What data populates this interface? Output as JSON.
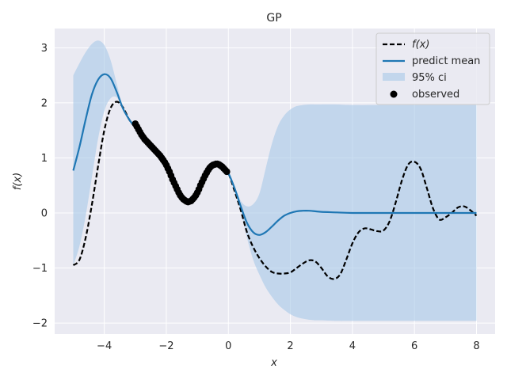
{
  "chart_data": {
    "type": "line",
    "title": "GP",
    "xlabel": "x",
    "ylabel": "f(x)",
    "xlim": [
      -5.6,
      8.6
    ],
    "ylim": [
      -2.2,
      3.35
    ],
    "x_ticks": [
      -4,
      -2,
      0,
      2,
      4,
      6,
      8
    ],
    "y_ticks": [
      -2,
      -1,
      0,
      1,
      2,
      3
    ],
    "x_tick_labels": [
      "−4",
      "−2",
      "0",
      "2",
      "4",
      "6",
      "8"
    ],
    "y_tick_labels": [
      "−2",
      "−1",
      "0",
      "1",
      "2",
      "3"
    ],
    "grid": true,
    "legend_position": "top-right",
    "legend": [
      "f(x)",
      "predict mean",
      "95% ci",
      "observed"
    ],
    "colors": {
      "background": "#eaeaf2",
      "grid": "#ffffff",
      "true_function": "#000000",
      "mean": "#1f77b4",
      "ci_fill": "#a6c8e8",
      "observed": "#000000"
    },
    "series": [
      {
        "name": "f(x)",
        "style": "dashed",
        "x": [
          -5.0,
          -4.8,
          -4.6,
          -4.4,
          -4.2,
          -4.0,
          -3.8,
          -3.6,
          -3.4,
          -3.2,
          -3.0,
          -2.8,
          -2.6,
          -2.4,
          -2.2,
          -2.0,
          -1.8,
          -1.6,
          -1.4,
          -1.2,
          -1.0,
          -0.8,
          -0.6,
          -0.4,
          -0.2,
          0.0,
          0.2,
          0.4,
          0.6,
          0.8,
          1.0,
          1.2,
          1.4,
          1.6,
          1.8,
          2.0,
          2.2,
          2.4,
          2.6,
          2.8,
          3.0,
          3.2,
          3.4,
          3.6,
          3.8,
          4.0,
          4.2,
          4.4,
          4.6,
          4.8,
          5.0,
          5.2,
          5.4,
          5.6,
          5.8,
          6.0,
          6.2,
          6.4,
          6.6,
          6.8,
          7.0,
          7.2,
          7.4,
          7.6,
          7.8,
          8.0
        ],
        "y": [
          -0.95,
          -0.85,
          -0.45,
          0.15,
          0.85,
          1.5,
          1.9,
          2.02,
          1.92,
          1.7,
          1.55,
          1.4,
          1.25,
          1.15,
          1.05,
          0.9,
          0.65,
          0.4,
          0.25,
          0.2,
          0.3,
          0.55,
          0.78,
          0.88,
          0.85,
          0.72,
          0.4,
          0.05,
          -0.35,
          -0.62,
          -0.82,
          -0.97,
          -1.07,
          -1.1,
          -1.1,
          -1.08,
          -1.0,
          -0.92,
          -0.86,
          -0.88,
          -1.0,
          -1.15,
          -1.2,
          -1.12,
          -0.85,
          -0.55,
          -0.35,
          -0.28,
          -0.3,
          -0.33,
          -0.32,
          -0.15,
          0.2,
          0.6,
          0.88,
          0.93,
          0.8,
          0.45,
          0.08,
          -0.12,
          -0.08,
          0.0,
          0.1,
          0.12,
          0.05,
          -0.05
        ]
      },
      {
        "name": "predict mean",
        "style": "solid",
        "x": [
          -5.0,
          -4.8,
          -4.6,
          -4.4,
          -4.2,
          -4.0,
          -3.8,
          -3.6,
          -3.4,
          -3.2,
          -3.0,
          -2.8,
          -2.6,
          -2.4,
          -2.2,
          -2.0,
          -1.8,
          -1.6,
          -1.4,
          -1.2,
          -1.0,
          -0.8,
          -0.6,
          -0.4,
          -0.2,
          0.0,
          0.2,
          0.4,
          0.6,
          0.8,
          1.0,
          1.2,
          1.4,
          1.6,
          1.8,
          2.0,
          2.2,
          2.4,
          2.6,
          2.8,
          3.0,
          3.5,
          4.0,
          5.0,
          6.0,
          7.0,
          8.0
        ],
        "y": [
          0.77,
          1.2,
          1.7,
          2.15,
          2.42,
          2.52,
          2.45,
          2.2,
          1.9,
          1.7,
          1.55,
          1.4,
          1.25,
          1.15,
          1.05,
          0.9,
          0.65,
          0.4,
          0.25,
          0.2,
          0.3,
          0.55,
          0.78,
          0.88,
          0.85,
          0.72,
          0.45,
          0.12,
          -0.18,
          -0.35,
          -0.4,
          -0.35,
          -0.25,
          -0.14,
          -0.05,
          0.0,
          0.03,
          0.04,
          0.04,
          0.03,
          0.02,
          0.01,
          0.0,
          0.0,
          0.0,
          0.0,
          0.0
        ]
      },
      {
        "name": "95% ci",
        "style": "band",
        "x": [
          -5.0,
          -4.8,
          -4.6,
          -4.4,
          -4.2,
          -4.0,
          -3.8,
          -3.6,
          -3.4,
          -3.2,
          -3.0,
          -2.0,
          -1.0,
          -0.2,
          0.0,
          0.2,
          0.4,
          0.6,
          0.8,
          1.0,
          1.2,
          1.4,
          1.6,
          1.8,
          2.0,
          2.2,
          2.4,
          2.6,
          2.8,
          3.0,
          3.5,
          4.0,
          5.0,
          6.0,
          7.0,
          8.0
        ],
        "lower": [
          -0.95,
          -0.6,
          -0.05,
          0.65,
          1.35,
          1.85,
          2.08,
          2.1,
          1.9,
          1.7,
          1.55,
          0.9,
          0.3,
          0.85,
          0.72,
          0.42,
          0.05,
          -0.45,
          -0.85,
          -1.12,
          -1.35,
          -1.52,
          -1.66,
          -1.76,
          -1.84,
          -1.89,
          -1.92,
          -1.94,
          -1.95,
          -1.95,
          -1.96,
          -1.96,
          -1.96,
          -1.96,
          -1.96,
          -1.96
        ],
        "upper": [
          2.5,
          2.72,
          2.92,
          3.07,
          3.13,
          3.05,
          2.78,
          2.35,
          1.92,
          1.7,
          1.55,
          0.9,
          0.3,
          0.85,
          0.72,
          0.48,
          0.22,
          0.12,
          0.16,
          0.35,
          0.8,
          1.25,
          1.58,
          1.77,
          1.88,
          1.94,
          1.96,
          1.97,
          1.97,
          1.97,
          1.97,
          1.96,
          1.96,
          1.96,
          1.96,
          1.96
        ]
      },
      {
        "name": "observed",
        "style": "points",
        "x_range": [
          -3.0,
          -0.05
        ],
        "x": [
          -3.0,
          -2.95,
          -2.9,
          -2.85,
          -2.8,
          -2.75,
          -2.7,
          -2.65,
          -2.6,
          -2.55,
          -2.5,
          -2.45,
          -2.4,
          -2.35,
          -2.3,
          -2.25,
          -2.2,
          -2.15,
          -2.1,
          -2.05,
          -2.0,
          -1.95,
          -1.9,
          -1.85,
          -1.8,
          -1.75,
          -1.7,
          -1.65,
          -1.6,
          -1.55,
          -1.5,
          -1.45,
          -1.4,
          -1.35,
          -1.3,
          -1.25,
          -1.2,
          -1.15,
          -1.1,
          -1.05,
          -1.0,
          -0.95,
          -0.9,
          -0.85,
          -0.8,
          -0.75,
          -0.7,
          -0.65,
          -0.6,
          -0.55,
          -0.5,
          -0.45,
          -0.4,
          -0.35,
          -0.3,
          -0.25,
          -0.2,
          -0.15,
          -0.1,
          -0.05
        ],
        "y": [
          1.62,
          1.57,
          1.52,
          1.47,
          1.42,
          1.38,
          1.34,
          1.31,
          1.28,
          1.25,
          1.22,
          1.19,
          1.16,
          1.13,
          1.1,
          1.07,
          1.04,
          1.0,
          0.96,
          0.92,
          0.87,
          0.81,
          0.75,
          0.68,
          0.61,
          0.55,
          0.49,
          0.43,
          0.37,
          0.32,
          0.28,
          0.25,
          0.23,
          0.21,
          0.2,
          0.21,
          0.22,
          0.25,
          0.28,
          0.32,
          0.37,
          0.43,
          0.5,
          0.56,
          0.62,
          0.68,
          0.73,
          0.78,
          0.82,
          0.85,
          0.87,
          0.88,
          0.89,
          0.89,
          0.88,
          0.86,
          0.84,
          0.81,
          0.78,
          0.75
        ]
      }
    ]
  }
}
